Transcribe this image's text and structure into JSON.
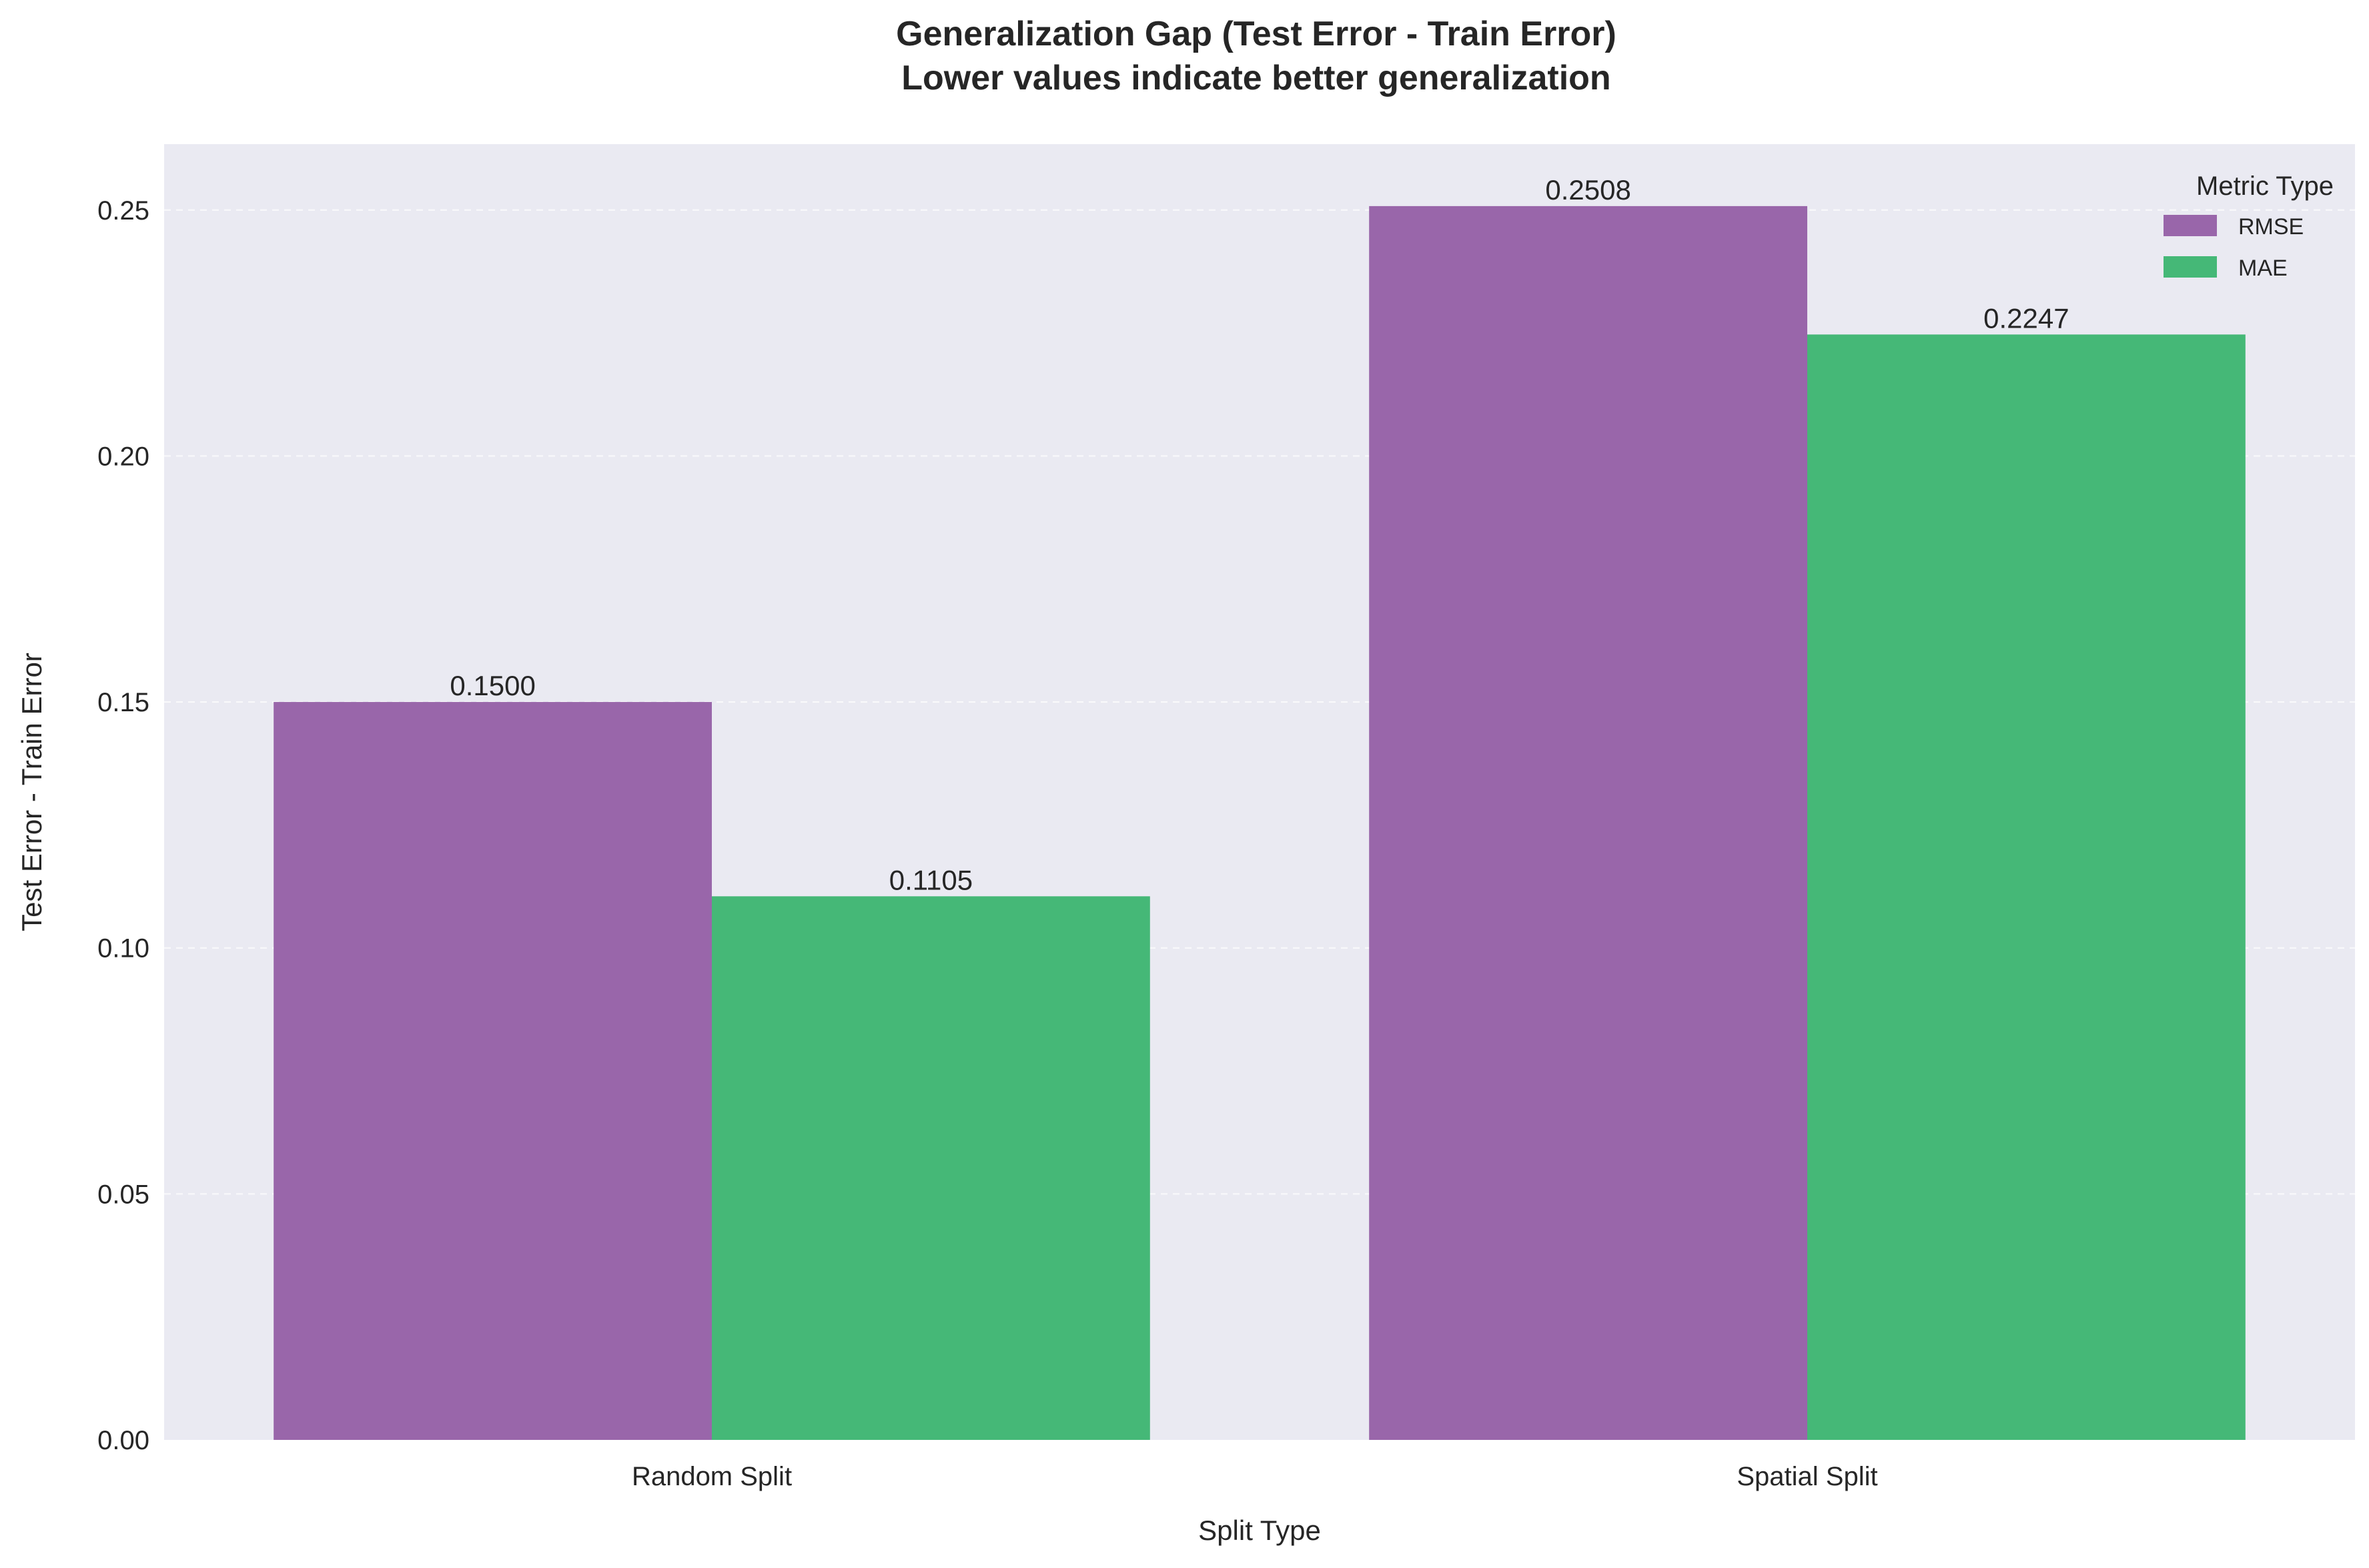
{
  "chart_data": {
    "type": "bar",
    "title_lines": [
      "Generalization Gap (Test Error - Train Error)",
      "Lower values indicate better generalization"
    ],
    "xlabel": "Split Type",
    "ylabel": "Test Error - Train Error",
    "categories": [
      "Random Split",
      "Spatial Split"
    ],
    "series": [
      {
        "name": "RMSE",
        "values": [
          0.15,
          0.2508
        ],
        "labels": [
          "0.1500",
          "0.2508"
        ],
        "color": "#9966aa"
      },
      {
        "name": "MAE",
        "values": [
          0.1105,
          0.2247
        ],
        "labels": [
          "0.1105",
          "0.2247"
        ],
        "color": "#45b877"
      }
    ],
    "ylim": [
      0,
      0.2634
    ],
    "yticks": [
      0.0,
      0.05,
      0.1,
      0.15,
      0.2,
      0.25
    ],
    "ytick_labels": [
      "0.00",
      "0.05",
      "0.10",
      "0.15",
      "0.20",
      "0.25"
    ],
    "grid": true,
    "legend": {
      "title": "Metric Type",
      "position": "top-right"
    },
    "colors": {
      "plot_background": "#eaeaf2",
      "gridline": "#ffffff",
      "text": "#262626"
    }
  }
}
